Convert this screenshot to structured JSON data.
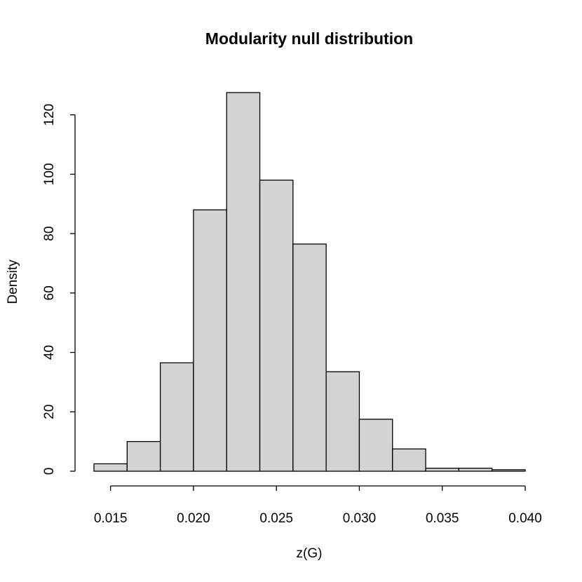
{
  "chart_data": {
    "type": "bar",
    "title": "Modularity null distribution",
    "xlabel": "z(G)",
    "ylabel": "Density",
    "bin_width": 0.002,
    "bins": [
      {
        "x0": 0.014,
        "x1": 0.016,
        "density": 2.5
      },
      {
        "x0": 0.016,
        "x1": 0.018,
        "density": 10
      },
      {
        "x0": 0.018,
        "x1": 0.02,
        "density": 36.5
      },
      {
        "x0": 0.02,
        "x1": 0.022,
        "density": 88
      },
      {
        "x0": 0.022,
        "x1": 0.024,
        "density": 127.5
      },
      {
        "x0": 0.024,
        "x1": 0.026,
        "density": 98
      },
      {
        "x0": 0.026,
        "x1": 0.028,
        "density": 76.5
      },
      {
        "x0": 0.028,
        "x1": 0.03,
        "density": 33.5
      },
      {
        "x0": 0.03,
        "x1": 0.032,
        "density": 17.5
      },
      {
        "x0": 0.032,
        "x1": 0.034,
        "density": 7.5
      },
      {
        "x0": 0.034,
        "x1": 0.036,
        "density": 1
      },
      {
        "x0": 0.036,
        "x1": 0.038,
        "density": 1
      },
      {
        "x0": 0.038,
        "x1": 0.04,
        "density": 0.5
      }
    ],
    "x_ticks": [
      {
        "value": 0.015,
        "label": "0.015"
      },
      {
        "value": 0.02,
        "label": "0.020"
      },
      {
        "value": 0.025,
        "label": "0.025"
      },
      {
        "value": 0.03,
        "label": "0.030"
      },
      {
        "value": 0.035,
        "label": "0.035"
      },
      {
        "value": 0.04,
        "label": "0.040"
      }
    ],
    "y_ticks": [
      {
        "value": 0,
        "label": "0"
      },
      {
        "value": 20,
        "label": "20"
      },
      {
        "value": 40,
        "label": "40"
      },
      {
        "value": 60,
        "label": "60"
      },
      {
        "value": 80,
        "label": "80"
      },
      {
        "value": 100,
        "label": "100"
      },
      {
        "value": 120,
        "label": "120"
      }
    ],
    "xlim": [
      0.014,
      0.04
    ],
    "ylim": [
      0,
      130
    ],
    "bar_fill": "#d3d3d3",
    "grid": false
  }
}
